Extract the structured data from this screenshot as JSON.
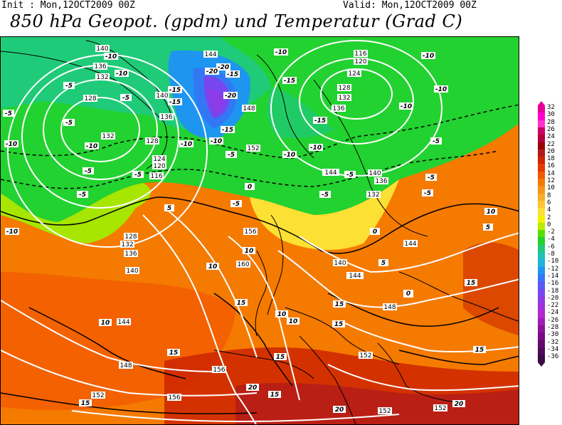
{
  "header": {
    "init": "Init : Mon,12OCT2009 00Z",
    "valid": "Valid: Mon,12OCT2009 00Z",
    "title": "850 hPa Geopot. (gpdm) und Temperatur (Grad C)"
  },
  "legend": {
    "labels": [
      "32",
      "30",
      "28",
      "26",
      "24",
      "22",
      "20",
      "18",
      "16",
      "14",
      "12",
      "10",
      "8",
      "6",
      "4",
      "2",
      "0",
      "-2",
      "-4",
      "-6",
      "-8",
      "-10",
      "-12",
      "-14",
      "-16",
      "-18",
      "-20",
      "-22",
      "-24",
      "-26",
      "-28",
      "-30",
      "-32",
      "-34",
      "-36"
    ],
    "colors": [
      "#e60099",
      "#ff00cc",
      "#ff33cc",
      "#cc0066",
      "#b3003b",
      "#990000",
      "#b31a1a",
      "#cc2600",
      "#e63a00",
      "#f25a00",
      "#f57a00",
      "#f7941a",
      "#f9ad26",
      "#fbc62e",
      "#fde034",
      "#f5f000",
      "#b8ec00",
      "#55e000",
      "#22d230",
      "#20c878",
      "#1ec4b4",
      "#1eb4dc",
      "#1e96f0",
      "#3278f5",
      "#5a5af5",
      "#7846f0",
      "#8c3ce6",
      "#a032dc",
      "#b428d2",
      "#a01eb4",
      "#8c1496",
      "#780a82",
      "#640a6e",
      "#500a5a",
      "#3c0a46"
    ]
  },
  "map": {
    "geopotential_labels": [
      "140",
      "144",
      "136",
      "132",
      "128",
      "120",
      "116",
      "124",
      "128",
      "132",
      "136",
      "140",
      "136",
      "132",
      "128",
      "124",
      "120",
      "116",
      "148",
      "152",
      "144",
      "136",
      "132",
      "140",
      "144",
      "128",
      "132",
      "136",
      "140",
      "156",
      "160",
      "140",
      "144",
      "148",
      "144",
      "148",
      "152",
      "156",
      "152",
      "156",
      "152",
      "152"
    ],
    "temperature_labels": [
      "-10",
      "-5",
      "-5",
      "-10",
      "-15",
      "-20",
      "-15",
      "-20",
      "-15",
      "-10",
      "-5",
      "-10",
      "-15",
      "-10",
      "-5",
      "-10",
      "-5",
      "-5",
      "-10",
      "-10",
      "-5",
      "-5",
      "-5",
      "-10",
      "-15",
      "-10",
      "-5",
      "-5",
      "-5",
      "-10",
      "0",
      "-5",
      "0",
      "5",
      "0",
      "5",
      "10",
      "10",
      "15",
      "10",
      "10",
      "15",
      "15",
      "10",
      "0",
      "15",
      "15",
      "15",
      "15",
      "20",
      "20",
      "20",
      "15",
      "10",
      "5",
      "-5",
      "-10",
      "-10",
      "-15",
      "-20",
      "15"
    ]
  }
}
